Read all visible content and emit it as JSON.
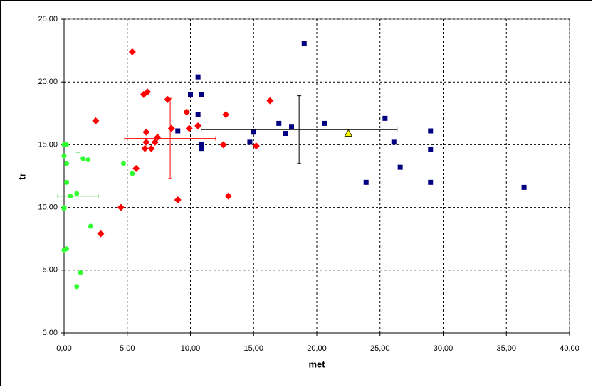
{
  "chart_data": {
    "type": "scatter",
    "xlabel": "met",
    "ylabel": "tr",
    "xlim": [
      0,
      40
    ],
    "ylim": [
      0,
      25
    ],
    "xticks": [
      {
        "value": 0,
        "label": "0,00"
      },
      {
        "value": 5,
        "label": "5,00"
      },
      {
        "value": 10,
        "label": "10,00"
      },
      {
        "value": 15,
        "label": "15,00"
      },
      {
        "value": 20,
        "label": "20,00"
      },
      {
        "value": 25,
        "label": "25,00"
      },
      {
        "value": 30,
        "label": "30,00"
      },
      {
        "value": 35,
        "label": "35,00"
      },
      {
        "value": 40,
        "label": "40,00"
      }
    ],
    "yticks": [
      {
        "value": 0,
        "label": "0,00"
      },
      {
        "value": 5,
        "label": "5,00"
      },
      {
        "value": 10,
        "label": "10,00"
      },
      {
        "value": 15,
        "label": "15,00"
      },
      {
        "value": 20,
        "label": "20,00"
      },
      {
        "value": 25,
        "label": "25,00"
      }
    ],
    "grid": true,
    "series": [
      {
        "marker": "circle",
        "color": "#33ff33",
        "x": [
          0.0,
          0.2,
          0.0,
          0.2,
          0.2,
          0.0,
          0.0,
          0.5,
          1.0,
          0.0,
          0.2,
          1.0,
          1.3,
          1.5,
          1.9,
          2.1,
          4.7,
          5.4
        ],
        "values": [
          15.0,
          15.0,
          14.1,
          13.5,
          12.0,
          10.0,
          9.9,
          10.9,
          11.1,
          6.6,
          6.7,
          3.7,
          4.8,
          13.9,
          13.8,
          8.5,
          13.5,
          12.7
        ]
      },
      {
        "marker": "diamond",
        "color": "#ff0000",
        "x": [
          2.5,
          2.9,
          4.5,
          5.4,
          5.7,
          6.3,
          6.6,
          6.5,
          6.5,
          6.4,
          6.9,
          7.2,
          7.4,
          8.2,
          8.5,
          9.0,
          9.7,
          9.9,
          10.6,
          12.6,
          12.8,
          13.0,
          15.2,
          16.3
        ],
        "values": [
          16.9,
          7.9,
          10.0,
          22.4,
          13.1,
          19.0,
          19.2,
          16.0,
          15.2,
          14.7,
          14.7,
          15.2,
          15.6,
          18.6,
          16.3,
          10.6,
          17.6,
          16.3,
          16.5,
          15.0,
          17.4,
          10.9,
          14.9,
          18.5
        ]
      },
      {
        "marker": "square",
        "color": "#000080",
        "x": [
          9.0,
          10.0,
          10.6,
          10.6,
          10.9,
          10.9,
          10.9,
          14.7,
          15.0,
          17.0,
          17.5,
          18.0,
          19.0,
          20.6,
          23.9,
          25.4,
          26.1,
          26.6,
          29.0,
          29.0,
          29.0,
          36.4
        ],
        "values": [
          16.1,
          19.0,
          20.4,
          17.4,
          19.0,
          15.0,
          14.7,
          15.2,
          16.0,
          16.7,
          15.9,
          16.4,
          23.1,
          16.7,
          12.0,
          17.1,
          15.2,
          13.2,
          16.1,
          14.6,
          12.0,
          11.6
        ]
      },
      {
        "marker": "triangle",
        "color": "#ffff00",
        "x": [
          22.5
        ],
        "values": [
          15.9
        ]
      }
    ],
    "error_bars": [
      {
        "color": "#33cc33",
        "x": 1.1,
        "y": 10.9,
        "xerr": 1.6,
        "yerr": 3.5
      },
      {
        "color": "#ff0000",
        "x": 8.4,
        "y": 15.5,
        "xerr": 3.6,
        "yerr": 3.2
      },
      {
        "color": "#000000",
        "x": 18.6,
        "y": 16.2,
        "xerr": 7.75,
        "yerr": 2.7
      }
    ]
  }
}
